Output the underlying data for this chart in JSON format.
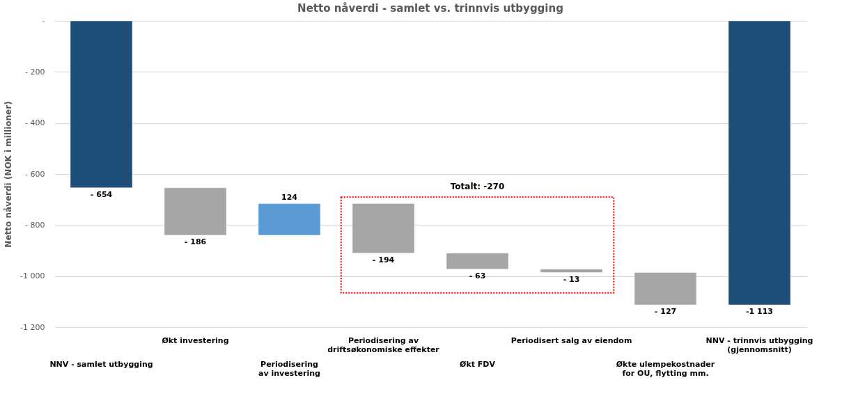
{
  "chart_data": {
    "type": "bar",
    "title": "Netto nåverdi - samlet vs. trinnvis utbygging",
    "ylabel": "Netto nåverdi (NOK i millioner)",
    "categories": [
      "NNV - samlet utbygging",
      "Økt investering",
      "Periodisering\nav investering",
      "Periodisering av\ndriftsøkonomiske effekter",
      "Økt FDV",
      "Periodisert salg av eiendom",
      "Økte ulempekostnader\nfor OU, flytting mm.",
      "NNV - trinnvis utbygging\n(gjennomsnitt)"
    ],
    "values": [
      -654,
      -186,
      124,
      -194,
      -63,
      -13,
      -127,
      -1113
    ],
    "base": [
      0,
      -654,
      -840,
      -716,
      -910,
      -973,
      -986,
      0
    ],
    "colors": [
      "#1f4e79",
      "#a5a5a5",
      "#5b9bd5",
      "#a5a5a5",
      "#a5a5a5",
      "#a5a5a5",
      "#a5a5a5",
      "#1f4e79"
    ],
    "value_labels": [
      "- 654",
      "- 186",
      "124",
      "- 194",
      "- 63",
      "- 13",
      "- 127",
      "-1 113"
    ],
    "ylim": [
      -1200,
      0
    ],
    "yticks": [
      {
        "value": 0,
        "label": "-"
      },
      {
        "value": -200,
        "label": "- 200"
      },
      {
        "value": -400,
        "label": "- 400"
      },
      {
        "value": -600,
        "label": "- 600"
      },
      {
        "value": -800,
        "label": "- 800"
      },
      {
        "value": -1000,
        "label": "-1 000"
      },
      {
        "value": -1200,
        "label": "-1 200"
      }
    ],
    "grid": "y",
    "annotations": [
      "Totalt: -270"
    ]
  }
}
